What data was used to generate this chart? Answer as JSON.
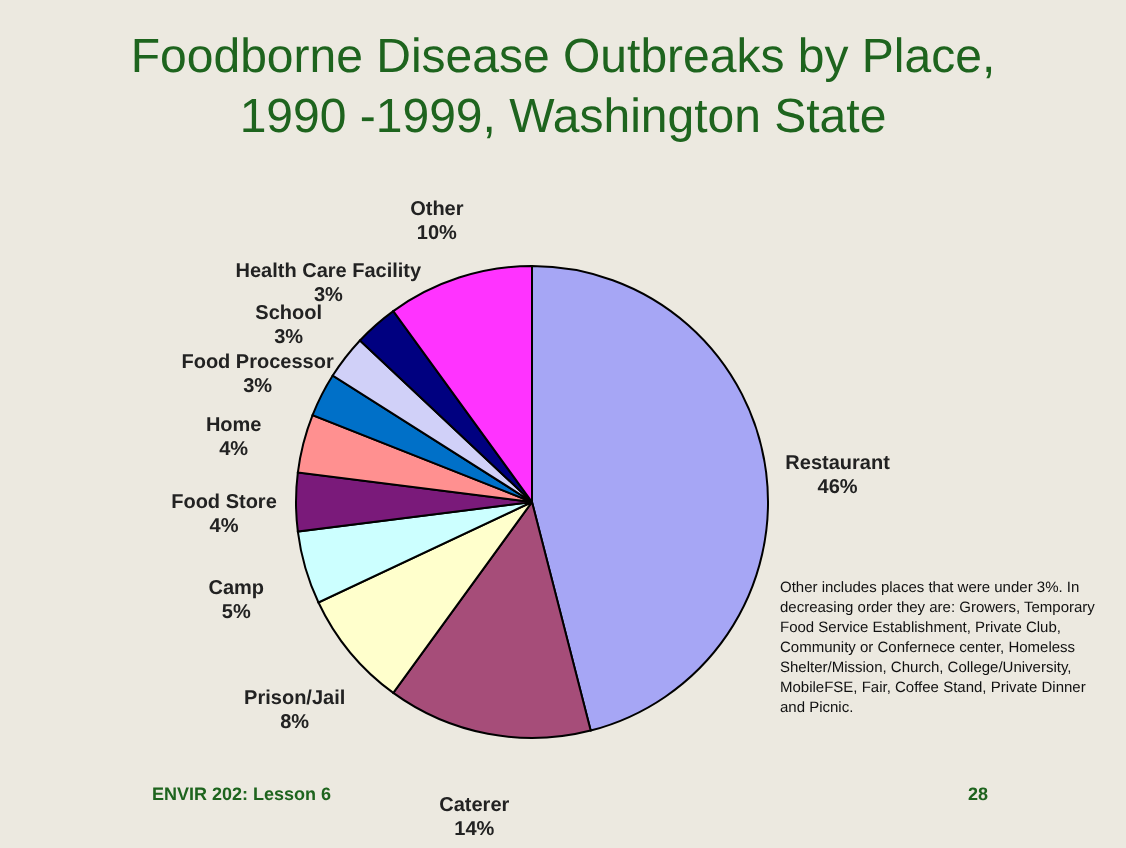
{
  "chart_data": {
    "type": "pie",
    "title": "Foodborne Disease Outbreaks by Place, 1990 -1999, Washington State",
    "categories": [
      "Restaurant",
      "Caterer",
      "Prison/Jail",
      "Camp",
      "Food Store",
      "Home",
      "Food Processor",
      "School",
      "Health Care Facility",
      "Other"
    ],
    "values": [
      46,
      14,
      8,
      5,
      4,
      4,
      3,
      3,
      3,
      10
    ],
    "value_labels": [
      "46%",
      "14%",
      "8%",
      "5%",
      "4%",
      "4%",
      "3%",
      "3%",
      "3%",
      "10%"
    ],
    "colors": [
      "#a6a6f5",
      "#a64d79",
      "#ffffcc",
      "#ccffff",
      "#7a1a7a",
      "#ff9090",
      "#0070c8",
      "#d0d0f8",
      "#000080",
      "#ff33ff"
    ],
    "annotations": [
      "Other includes places that were under 3%. In decreasing order they are: Growers, Temporary Food Service Establishment, Private Club, Community or Confernece center, Homeless Shelter/Mission, Church, College/University, MobileFSE, Fair, Coffee Stand, Private Dinner and Picnic.",
      "ENVIR 202: Lesson 6",
      "28"
    ]
  }
}
